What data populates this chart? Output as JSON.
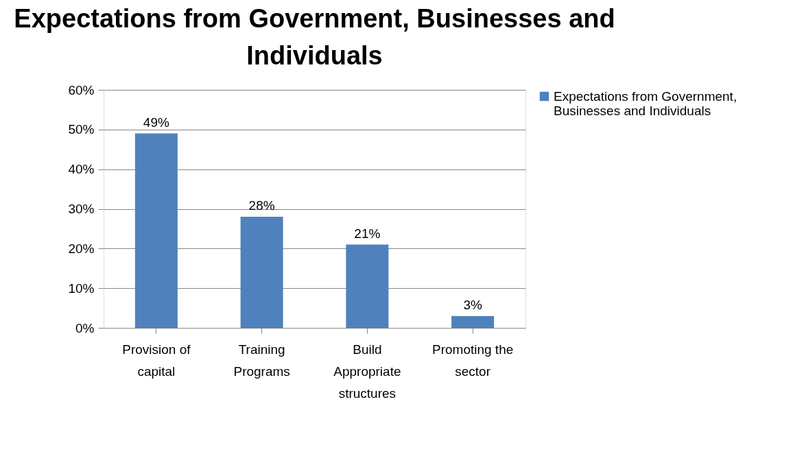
{
  "chart_data": {
    "type": "bar",
    "title": "Expectations from Government, Businesses and Individuals",
    "categories": [
      "Provision of capital",
      "Training Programs",
      "Build Appropriate structures",
      "Promoting the sector"
    ],
    "series": [
      {
        "name": "Expectations from Government, Businesses and Individuals",
        "color": "#4f81bd",
        "values": [
          49,
          28,
          21,
          3
        ],
        "value_labels": [
          "49%",
          "28%",
          "21%",
          "3%"
        ]
      }
    ],
    "ylim": [
      0,
      60
    ],
    "yticks": [
      {
        "value": 0,
        "label": "0%"
      },
      {
        "value": 10,
        "label": "10%"
      },
      {
        "value": 20,
        "label": "20%"
      },
      {
        "value": 30,
        "label": "30%"
      },
      {
        "value": 40,
        "label": "40%"
      },
      {
        "value": 50,
        "label": "50%"
      },
      {
        "value": 60,
        "label": "60%"
      }
    ],
    "grid": "y",
    "legend": "right"
  }
}
